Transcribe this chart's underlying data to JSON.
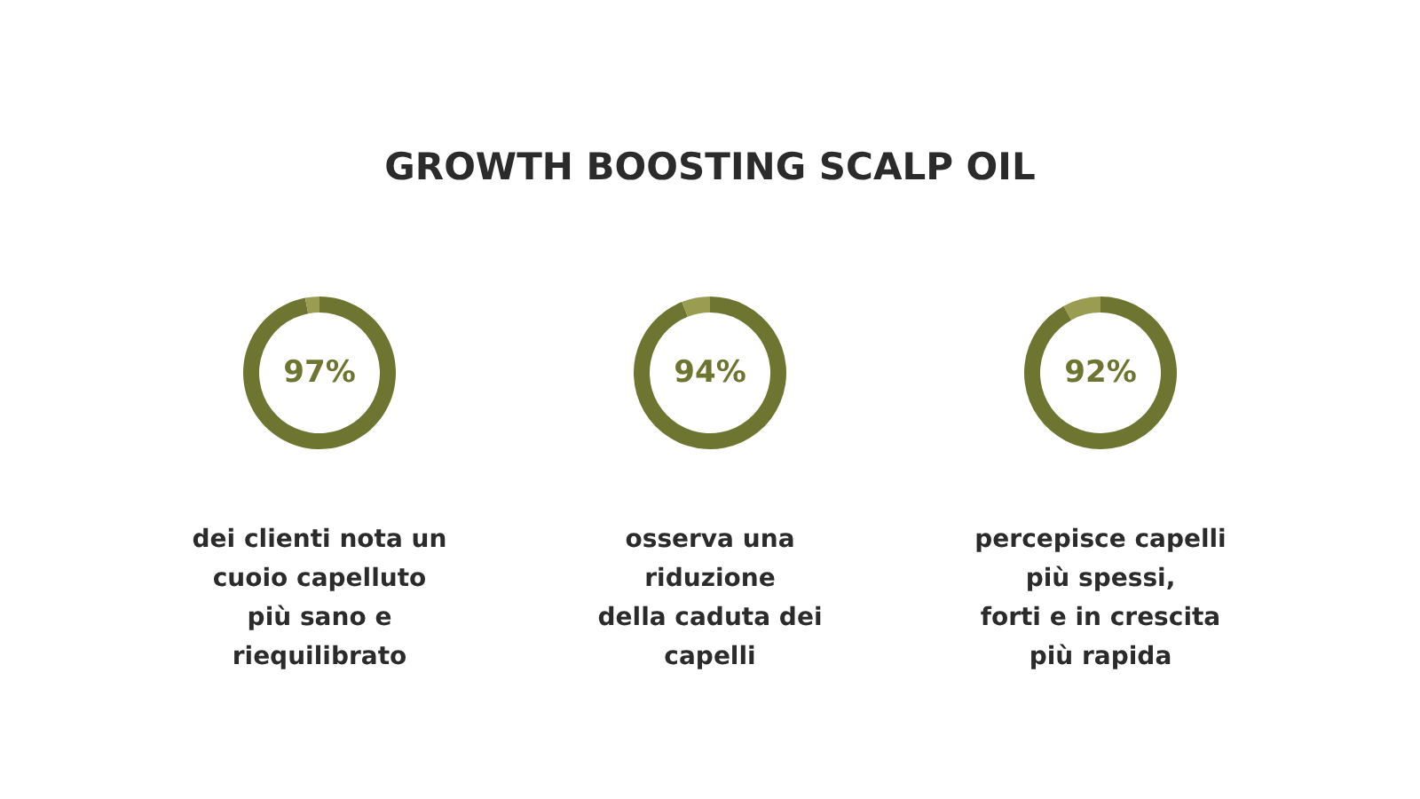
{
  "chart_data": [
    {
      "type": "other",
      "title": "GROWTH BOOSTING SCALP OIL"
    },
    {
      "type": "donut",
      "categories": [
        null,
        null
      ],
      "values": [
        97,
        3
      ],
      "colors": [
        "#6e7530",
        "#9a9c52"
      ],
      "value_labels": [
        "97%",
        null
      ],
      "legend": false,
      "annotations": [
        "dei clienti nota un\ncuoio capelluto\npiù sano e\nriequilibrato"
      ]
    },
    {
      "type": "donut",
      "categories": [
        null,
        null
      ],
      "values": [
        94,
        6
      ],
      "colors": [
        "#6e7530",
        "#9a9c52"
      ],
      "value_labels": [
        "94%",
        null
      ],
      "legend": false,
      "annotations": [
        "osserva una\nriduzione\ndella caduta dei\ncapelli"
      ]
    },
    {
      "type": "donut",
      "categories": [
        null,
        null
      ],
      "values": [
        92,
        8
      ],
      "colors": [
        "#6e7530",
        "#9a9c52"
      ],
      "value_labels": [
        "92%",
        null
      ],
      "legend": false,
      "annotations": [
        "percepisce capelli\npiù spessi,\nforti e in crescita\npiù rapida"
      ]
    }
  ]
}
